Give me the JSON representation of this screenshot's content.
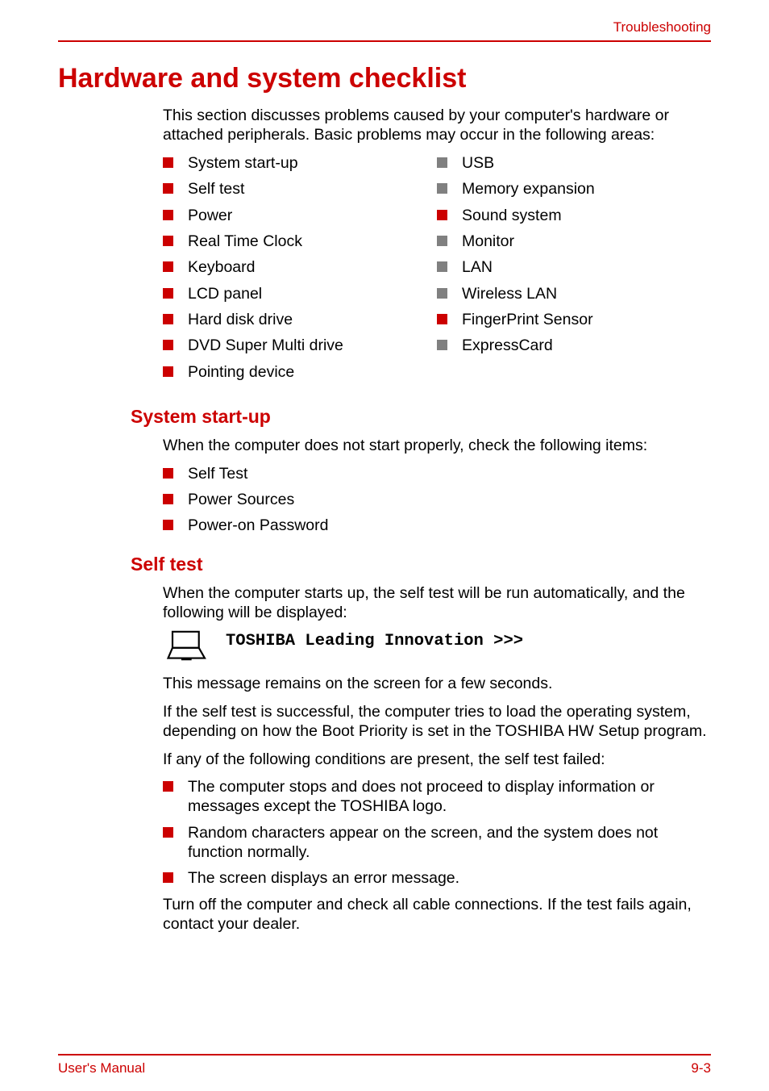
{
  "header": {
    "label": "Troubleshooting"
  },
  "footer": {
    "left": "User's Manual",
    "right": "9-3"
  },
  "colors": {
    "accent": "#cc0000",
    "gray": "#808080"
  },
  "sec1": {
    "title": "Hardware and system checklist",
    "intro": "This section discusses problems caused by your computer's hardware or attached peripherals. Basic problems may occur in the following areas:",
    "left": [
      {
        "text": "System start-up",
        "gray": false
      },
      {
        "text": "Self test",
        "gray": false
      },
      {
        "text": "Power",
        "gray": false
      },
      {
        "text": "Real Time Clock",
        "gray": false
      },
      {
        "text": "Keyboard",
        "gray": false
      },
      {
        "text": "LCD panel",
        "gray": false
      },
      {
        "text": "Hard disk drive",
        "gray": false
      },
      {
        "text": "DVD Super Multi drive",
        "gray": false
      },
      {
        "text": "Pointing device",
        "gray": false
      }
    ],
    "right": [
      {
        "text": "USB",
        "gray": true
      },
      {
        "text": "Memory expansion",
        "gray": true
      },
      {
        "text": "Sound system",
        "gray": false
      },
      {
        "text": "Monitor",
        "gray": true
      },
      {
        "text": "LAN",
        "gray": true
      },
      {
        "text": "Wireless LAN",
        "gray": true
      },
      {
        "text": "FingerPrint Sensor",
        "gray": false
      },
      {
        "text": "ExpressCard",
        "gray": true
      }
    ]
  },
  "sec2": {
    "title": "System start-up",
    "intro": "When the computer does not start properly, check the following items:",
    "items": [
      {
        "text": "Self Test",
        "gray": false
      },
      {
        "text": "Power Sources",
        "gray": false
      },
      {
        "text": "Power-on Password",
        "gray": false
      }
    ]
  },
  "sec3": {
    "title": "Self test",
    "p1": "When the computer starts up, the self test will be run automatically, and the following will be displayed:",
    "mono": "TOSHIBA Leading Innovation >>>",
    "p2": "This message remains on the screen for a few seconds.",
    "p3": "If the self test is successful, the computer tries to load the operating system, depending on how the Boot Priority is set in the TOSHIBA HW Setup program.",
    "p4": "If any of the following conditions are present, the self test failed:",
    "fail_items": [
      {
        "text": "The computer stops and does not proceed to display information or messages except the TOSHIBA logo.",
        "gray": false
      },
      {
        "text": "Random characters appear on the screen, and the system does not function normally.",
        "gray": false
      },
      {
        "text": "The screen displays an error message.",
        "gray": false
      }
    ],
    "p5": "Turn off the computer and check all cable connections. If the test fails again, contact your dealer."
  }
}
